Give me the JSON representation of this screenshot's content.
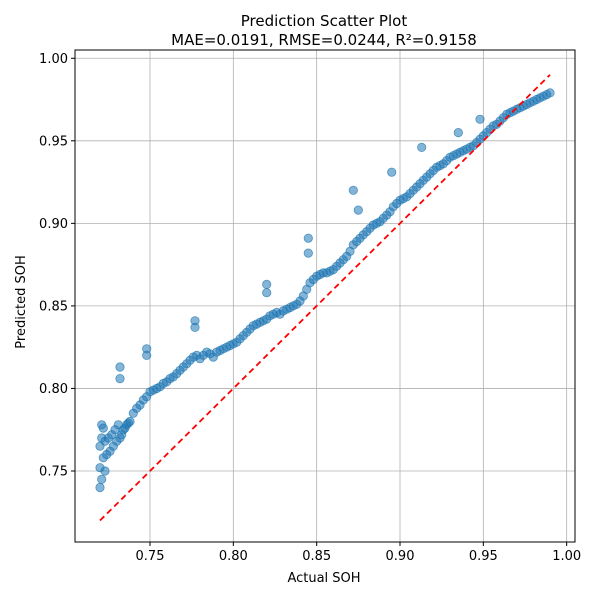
{
  "chart_data": {
    "type": "scatter",
    "title": "Prediction Scatter Plot",
    "subtitle": "MAE=0.0191, RMSE=0.0244, R²=0.9158",
    "xlabel": "Actual SOH",
    "ylabel": "Predicted SOH",
    "xlim": [
      0.705,
      1.005
    ],
    "ylim": [
      0.707,
      1.005
    ],
    "x_ticks": [
      "0.75",
      "0.80",
      "0.85",
      "0.90",
      "0.95",
      "1.00"
    ],
    "x_tick_values": [
      0.75,
      0.8,
      0.85,
      0.9,
      0.95,
      1.0
    ],
    "y_ticks": [
      "0.75",
      "0.80",
      "0.85",
      "0.90",
      "0.95",
      "1.00"
    ],
    "y_tick_values": [
      0.75,
      0.8,
      0.85,
      0.9,
      0.95,
      1.0
    ],
    "grid": true,
    "point_color": "#1f77b4",
    "reference_line": {
      "x": [
        0.72,
        0.99
      ],
      "y": [
        0.72,
        0.99
      ],
      "style": "dashed",
      "color": "#ff0000"
    },
    "series": [
      {
        "x": [
          0.72,
          0.72,
          0.72,
          0.721,
          0.721,
          0.721,
          0.722,
          0.722,
          0.723,
          0.723,
          0.724,
          0.725,
          0.726,
          0.727,
          0.728,
          0.729,
          0.73,
          0.731,
          0.732,
          0.733,
          0.734,
          0.735,
          0.736,
          0.737,
          0.738,
          0.74,
          0.742,
          0.744,
          0.746,
          0.748,
          0.75,
          0.752,
          0.754,
          0.756,
          0.758,
          0.76,
          0.762,
          0.764,
          0.766,
          0.768,
          0.77,
          0.772,
          0.774,
          0.776,
          0.778,
          0.78,
          0.782,
          0.784,
          0.786,
          0.788,
          0.79,
          0.792,
          0.794,
          0.796,
          0.798,
          0.8,
          0.802,
          0.804,
          0.806,
          0.808,
          0.81,
          0.812,
          0.814,
          0.816,
          0.818,
          0.82,
          0.822,
          0.824,
          0.826,
          0.828,
          0.83,
          0.832,
          0.834,
          0.836,
          0.838,
          0.84,
          0.842,
          0.844,
          0.846,
          0.848,
          0.85,
          0.852,
          0.854,
          0.856,
          0.858,
          0.86,
          0.862,
          0.864,
          0.866,
          0.868,
          0.87,
          0.872,
          0.874,
          0.876,
          0.878,
          0.88,
          0.882,
          0.884,
          0.886,
          0.888,
          0.89,
          0.892,
          0.894,
          0.896,
          0.898,
          0.9,
          0.902,
          0.904,
          0.906,
          0.908,
          0.91,
          0.912,
          0.914,
          0.916,
          0.918,
          0.92,
          0.922,
          0.924,
          0.926,
          0.928,
          0.93,
          0.932,
          0.934,
          0.936,
          0.938,
          0.94,
          0.942,
          0.944,
          0.946,
          0.948,
          0.95,
          0.952,
          0.954,
          0.956,
          0.958,
          0.96,
          0.962,
          0.964,
          0.966,
          0.968,
          0.97,
          0.972,
          0.974,
          0.976,
          0.978,
          0.98,
          0.982,
          0.984,
          0.986,
          0.988,
          0.99,
          0.732,
          0.732,
          0.748,
          0.748,
          0.777,
          0.777,
          0.82,
          0.82,
          0.845,
          0.845,
          0.872,
          0.875,
          0.895,
          0.913,
          0.935,
          0.948
        ],
        "y": [
          0.74,
          0.752,
          0.765,
          0.778,
          0.745,
          0.77,
          0.758,
          0.776,
          0.75,
          0.768,
          0.76,
          0.77,
          0.762,
          0.772,
          0.765,
          0.775,
          0.768,
          0.778,
          0.77,
          0.772,
          0.775,
          0.776,
          0.778,
          0.779,
          0.78,
          0.785,
          0.788,
          0.79,
          0.793,
          0.795,
          0.798,
          0.799,
          0.8,
          0.801,
          0.803,
          0.804,
          0.806,
          0.807,
          0.809,
          0.811,
          0.813,
          0.815,
          0.817,
          0.819,
          0.82,
          0.818,
          0.82,
          0.822,
          0.821,
          0.819,
          0.822,
          0.823,
          0.824,
          0.825,
          0.826,
          0.827,
          0.828,
          0.83,
          0.832,
          0.834,
          0.836,
          0.838,
          0.839,
          0.84,
          0.841,
          0.842,
          0.844,
          0.845,
          0.846,
          0.845,
          0.847,
          0.848,
          0.849,
          0.85,
          0.851,
          0.853,
          0.856,
          0.86,
          0.864,
          0.866,
          0.868,
          0.869,
          0.87,
          0.87,
          0.871,
          0.872,
          0.874,
          0.876,
          0.878,
          0.88,
          0.883,
          0.887,
          0.889,
          0.891,
          0.893,
          0.895,
          0.897,
          0.899,
          0.9,
          0.901,
          0.903,
          0.905,
          0.907,
          0.91,
          0.912,
          0.914,
          0.915,
          0.916,
          0.918,
          0.92,
          0.922,
          0.924,
          0.926,
          0.928,
          0.93,
          0.932,
          0.934,
          0.935,
          0.936,
          0.938,
          0.94,
          0.941,
          0.942,
          0.943,
          0.944,
          0.945,
          0.946,
          0.947,
          0.949,
          0.951,
          0.953,
          0.955,
          0.957,
          0.959,
          0.96,
          0.962,
          0.964,
          0.966,
          0.967,
          0.968,
          0.969,
          0.97,
          0.971,
          0.972,
          0.973,
          0.974,
          0.975,
          0.976,
          0.977,
          0.978,
          0.979,
          0.813,
          0.806,
          0.82,
          0.824,
          0.841,
          0.837,
          0.863,
          0.858,
          0.891,
          0.882,
          0.92,
          0.908,
          0.931,
          0.946,
          0.955,
          0.963
        ]
      }
    ]
  }
}
